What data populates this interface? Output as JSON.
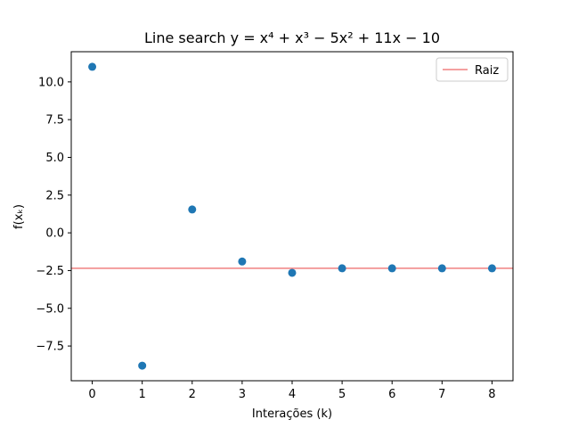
{
  "chart_data": {
    "type": "scatter",
    "title": "Line search y = x⁴ + x³ − 5x² + 11x − 10",
    "xlabel": "Interações (k)",
    "ylabel": "f(xₖ)",
    "x": [
      0,
      1,
      2,
      3,
      4,
      5,
      6,
      7,
      8
    ],
    "y": [
      11.0,
      -8.8,
      1.55,
      -1.9,
      -2.65,
      -2.35,
      -2.35,
      -2.35,
      -2.35
    ],
    "xlim": [
      -0.42,
      8.42
    ],
    "ylim": [
      -9.8,
      12.0
    ],
    "xticks": [
      0,
      1,
      2,
      3,
      4,
      5,
      6,
      7,
      8
    ],
    "yticks": [
      -7.5,
      -5.0,
      -2.5,
      0.0,
      2.5,
      5.0,
      7.5,
      10.0
    ],
    "ytick_labels": [
      "−7.5",
      "−5.0",
      "−2.5",
      "0.0",
      "2.5",
      "5.0",
      "7.5",
      "10.0"
    ],
    "hline": {
      "y": -2.35,
      "label": "Raiz",
      "color": "#f08080"
    },
    "point_color": "#1f77b4",
    "legend_position": "top-right",
    "grid": false
  }
}
